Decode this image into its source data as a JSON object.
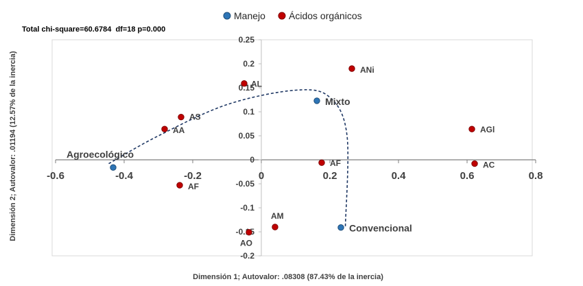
{
  "chart_data": {
    "type": "scatter",
    "title": "",
    "annotation": "Total chi-square=60.6784  df=18 p=0.000",
    "xlabel": "Dimensión 1; Autovalor: .08308 (87.43% de la inercia)",
    "ylabel": "Dimensión 2; Autovalor: .01194 (12.57% de la inercia)",
    "xlim": [
      -0.6,
      0.8
    ],
    "ylim": [
      -0.2,
      0.25
    ],
    "x_ticks": [
      -0.6,
      -0.4,
      -0.2,
      0,
      0.2,
      0.4,
      0.6,
      0.8
    ],
    "x_tick_labels": [
      "-0.6",
      "-0.4",
      "-0.2",
      "0",
      "0.2",
      "0.4",
      "0.6",
      "0.8"
    ],
    "y_ticks": [
      0.25,
      0.2,
      0.15,
      0.1,
      0.05,
      0,
      -0.05,
      -0.1,
      -0.15,
      -0.2
    ],
    "y_tick_labels": [
      "0.25",
      "0.2",
      "0.15",
      "0.1",
      "0.05",
      "0",
      "-0.05",
      "-0.1",
      "-0.15",
      "-0.2"
    ],
    "grid": false,
    "legend_position": "top-center",
    "series": [
      {
        "name": "Manejo",
        "color": "#2e75b6",
        "points": [
          {
            "label": "Agroecológico",
            "x": -0.432,
            "y": -0.016
          },
          {
            "label": "Mixto",
            "x": 0.162,
            "y": 0.123
          },
          {
            "label": "Convencional",
            "x": 0.232,
            "y": -0.141
          }
        ]
      },
      {
        "name": "Ácidos orgánicos",
        "color": "#c00000",
        "points": [
          {
            "label": "AL",
            "x": -0.05,
            "y": 0.159
          },
          {
            "label": "ANi",
            "x": 0.264,
            "y": 0.19
          },
          {
            "label": "AS",
            "x": -0.234,
            "y": 0.089
          },
          {
            "label": "AA",
            "x": -0.282,
            "y": 0.064
          },
          {
            "label": "AF",
            "x": 0.176,
            "y": -0.006
          },
          {
            "label": "AF",
            "x": -0.238,
            "y": -0.053
          },
          {
            "label": "AGl",
            "x": 0.614,
            "y": 0.064
          },
          {
            "label": "AC",
            "x": 0.622,
            "y": -0.008
          },
          {
            "label": "AM",
            "x": 0.04,
            "y": -0.14
          },
          {
            "label": "AO",
            "x": -0.036,
            "y": -0.151
          }
        ]
      }
    ],
    "trend_curve": {
      "style": "dashed",
      "color": "#1f3864",
      "points": [
        {
          "x": -0.445,
          "y": -0.008
        },
        {
          "x": -0.3,
          "y": 0.05
        },
        {
          "x": -0.1,
          "y": 0.115
        },
        {
          "x": 0.1,
          "y": 0.145
        },
        {
          "x": 0.2,
          "y": 0.13
        },
        {
          "x": 0.25,
          "y": 0.05
        },
        {
          "x": 0.245,
          "y": -0.14
        }
      ]
    }
  }
}
